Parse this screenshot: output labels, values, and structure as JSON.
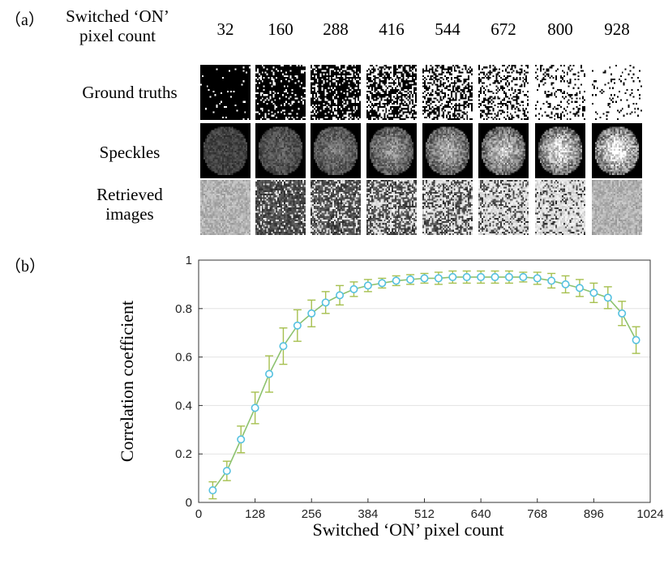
{
  "panel_a": {
    "label": "（a）",
    "header_label_line1": "Switched ‘ON’",
    "header_label_line2": "pixel count",
    "counts": [
      "32",
      "160",
      "288",
      "416",
      "544",
      "672",
      "800",
      "928"
    ],
    "row_labels": {
      "ground_truths": "Ground truths",
      "speckles": "Speckles",
      "retrieved_line1": "Retrieved",
      "retrieved_line2": "images"
    }
  },
  "panel_b": {
    "label": "（b）"
  },
  "chart_data": {
    "type": "line",
    "xlabel": "Switched ‘ON’ pixel count",
    "ylabel": "Correlation coefficient",
    "xlim": [
      0,
      1024
    ],
    "ylim": [
      0,
      1
    ],
    "xticks": [
      0,
      128,
      256,
      384,
      512,
      640,
      768,
      896,
      1024
    ],
    "yticks": [
      0,
      0.2,
      0.4,
      0.6,
      0.8,
      1
    ],
    "ytick_labels": [
      "0",
      "0.2",
      "0.4",
      "0.6",
      "0.8",
      "1"
    ],
    "grid": "horizontal",
    "series": [
      {
        "line_color": "#8dc26f",
        "marker_color": "#56c1e0",
        "errorbar_color": "#a6c04f",
        "x": [
          32,
          64,
          96,
          128,
          160,
          192,
          224,
          256,
          288,
          320,
          352,
          384,
          416,
          448,
          480,
          512,
          544,
          576,
          608,
          640,
          672,
          704,
          736,
          768,
          800,
          832,
          864,
          896,
          928,
          960,
          992
        ],
        "y": [
          0.05,
          0.13,
          0.26,
          0.39,
          0.53,
          0.645,
          0.73,
          0.78,
          0.825,
          0.855,
          0.88,
          0.895,
          0.905,
          0.915,
          0.92,
          0.925,
          0.925,
          0.93,
          0.93,
          0.93,
          0.93,
          0.93,
          0.93,
          0.925,
          0.915,
          0.9,
          0.885,
          0.865,
          0.845,
          0.78,
          0.67
        ],
        "err": [
          0.035,
          0.04,
          0.055,
          0.065,
          0.075,
          0.075,
          0.065,
          0.055,
          0.045,
          0.04,
          0.03,
          0.025,
          0.02,
          0.02,
          0.02,
          0.02,
          0.025,
          0.025,
          0.025,
          0.025,
          0.025,
          0.025,
          0.02,
          0.025,
          0.03,
          0.035,
          0.035,
          0.04,
          0.045,
          0.05,
          0.055
        ]
      }
    ]
  }
}
